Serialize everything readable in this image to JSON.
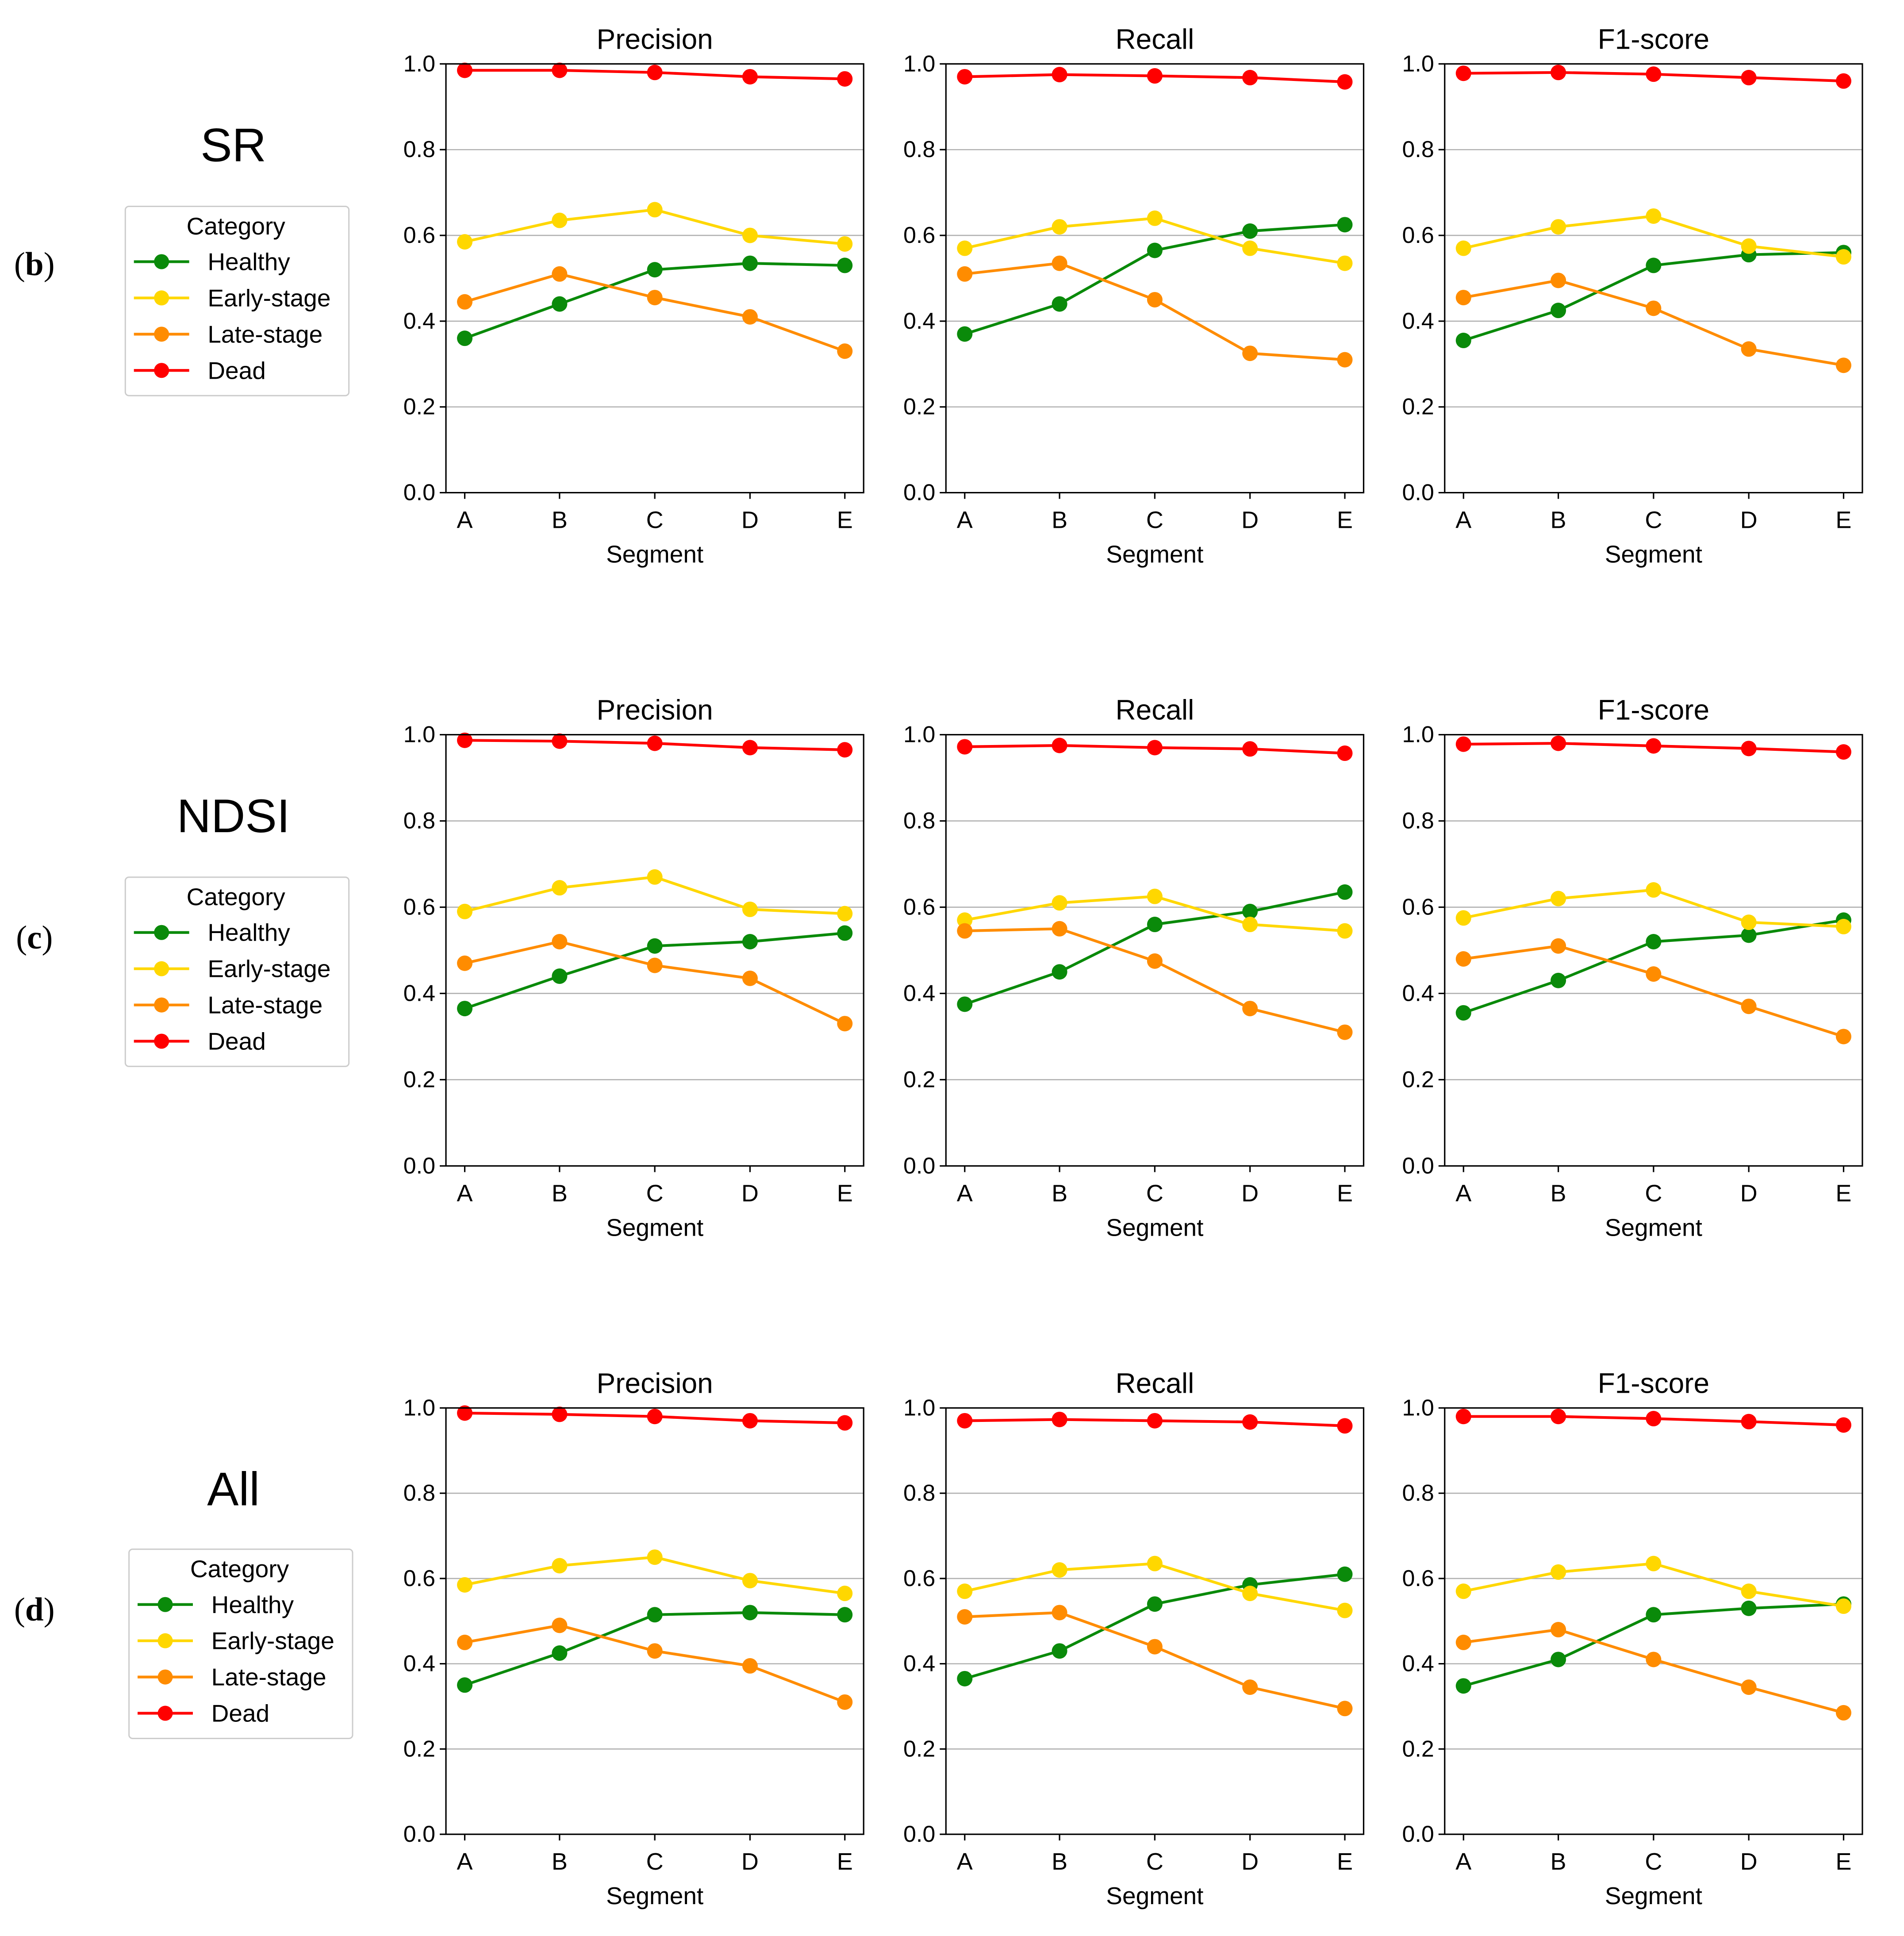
{
  "segment_xlabel": "Segment",
  "legend_title": "Category",
  "categories_legend": [
    "Healthy",
    "Early-stage",
    "Late-stage",
    "Dead"
  ],
  "series_colors": {
    "Healthy": "#0a8a0a",
    "Early-stage": "#ffd700",
    "Late-stage": "#ff8c00",
    "Dead": "#ff0000"
  },
  "rows": [
    {
      "panel_label": "(b)",
      "letter_open": "(",
      "letter": "b",
      "letter_close": ")",
      "method": "SR",
      "legend_title": "Category"
    },
    {
      "panel_label": "(c)",
      "letter_open": "(",
      "letter": "c",
      "letter_close": ")",
      "method": "NDSI",
      "legend_title": "Category"
    },
    {
      "panel_label": "(d)",
      "letter_open": "(",
      "letter": "d",
      "letter_close": ")",
      "method": "All",
      "legend_title": "Category"
    }
  ],
  "chart_data": [
    {
      "type": "line",
      "row": "SR",
      "title": "Precision",
      "xlabel": "Segment",
      "ylabel": "",
      "categories": [
        "A",
        "B",
        "C",
        "D",
        "E"
      ],
      "ylim": [
        0.0,
        1.0
      ],
      "yticks": [
        "0.0",
        "0.2",
        "0.4",
        "0.6",
        "0.8",
        "1.0"
      ],
      "grid": "horizontal",
      "series": [
        {
          "name": "Healthy",
          "values": [
            0.36,
            0.44,
            0.52,
            0.535,
            0.53
          ]
        },
        {
          "name": "Early-stage",
          "values": [
            0.585,
            0.635,
            0.66,
            0.6,
            0.58
          ]
        },
        {
          "name": "Late-stage",
          "values": [
            0.445,
            0.51,
            0.455,
            0.41,
            0.33
          ]
        },
        {
          "name": "Dead",
          "values": [
            0.985,
            0.985,
            0.98,
            0.97,
            0.965
          ]
        }
      ]
    },
    {
      "type": "line",
      "row": "SR",
      "title": "Recall",
      "xlabel": "Segment",
      "ylabel": "",
      "categories": [
        "A",
        "B",
        "C",
        "D",
        "E"
      ],
      "ylim": [
        0.0,
        1.0
      ],
      "yticks": [
        "0.0",
        "0.2",
        "0.4",
        "0.6",
        "0.8",
        "1.0"
      ],
      "grid": "horizontal",
      "series": [
        {
          "name": "Healthy",
          "values": [
            0.37,
            0.44,
            0.565,
            0.61,
            0.625
          ]
        },
        {
          "name": "Early-stage",
          "values": [
            0.57,
            0.62,
            0.64,
            0.57,
            0.535
          ]
        },
        {
          "name": "Late-stage",
          "values": [
            0.51,
            0.535,
            0.45,
            0.325,
            0.31
          ]
        },
        {
          "name": "Dead",
          "values": [
            0.97,
            0.975,
            0.972,
            0.968,
            0.958
          ]
        }
      ]
    },
    {
      "type": "line",
      "row": "SR",
      "title": "F1-score",
      "xlabel": "Segment",
      "ylabel": "",
      "categories": [
        "A",
        "B",
        "C",
        "D",
        "E"
      ],
      "ylim": [
        0.0,
        1.0
      ],
      "yticks": [
        "0.0",
        "0.2",
        "0.4",
        "0.6",
        "0.8",
        "1.0"
      ],
      "grid": "horizontal",
      "series": [
        {
          "name": "Healthy",
          "values": [
            0.355,
            0.425,
            0.53,
            0.555,
            0.56
          ]
        },
        {
          "name": "Early-stage",
          "values": [
            0.57,
            0.62,
            0.645,
            0.575,
            0.55
          ]
        },
        {
          "name": "Late-stage",
          "values": [
            0.455,
            0.495,
            0.43,
            0.335,
            0.297
          ]
        },
        {
          "name": "Dead",
          "values": [
            0.978,
            0.98,
            0.976,
            0.968,
            0.96
          ]
        }
      ]
    },
    {
      "type": "line",
      "row": "NDSI",
      "title": "Precision",
      "xlabel": "Segment",
      "ylabel": "",
      "categories": [
        "A",
        "B",
        "C",
        "D",
        "E"
      ],
      "ylim": [
        0.0,
        1.0
      ],
      "yticks": [
        "0.0",
        "0.2",
        "0.4",
        "0.6",
        "0.8",
        "1.0"
      ],
      "grid": "horizontal",
      "series": [
        {
          "name": "Healthy",
          "values": [
            0.365,
            0.44,
            0.51,
            0.52,
            0.54
          ]
        },
        {
          "name": "Early-stage",
          "values": [
            0.59,
            0.645,
            0.67,
            0.595,
            0.585
          ]
        },
        {
          "name": "Late-stage",
          "values": [
            0.47,
            0.52,
            0.465,
            0.435,
            0.33
          ]
        },
        {
          "name": "Dead",
          "values": [
            0.987,
            0.985,
            0.98,
            0.97,
            0.965
          ]
        }
      ]
    },
    {
      "type": "line",
      "row": "NDSI",
      "title": "Recall",
      "xlabel": "Segment",
      "ylabel": "",
      "categories": [
        "A",
        "B",
        "C",
        "D",
        "E"
      ],
      "ylim": [
        0.0,
        1.0
      ],
      "yticks": [
        "0.0",
        "0.2",
        "0.4",
        "0.6",
        "0.8",
        "1.0"
      ],
      "grid": "horizontal",
      "series": [
        {
          "name": "Healthy",
          "values": [
            0.375,
            0.45,
            0.56,
            0.59,
            0.635
          ]
        },
        {
          "name": "Early-stage",
          "values": [
            0.57,
            0.61,
            0.625,
            0.56,
            0.545
          ]
        },
        {
          "name": "Late-stage",
          "values": [
            0.545,
            0.55,
            0.475,
            0.365,
            0.31
          ]
        },
        {
          "name": "Dead",
          "values": [
            0.972,
            0.975,
            0.97,
            0.967,
            0.957
          ]
        }
      ]
    },
    {
      "type": "line",
      "row": "NDSI",
      "title": "F1-score",
      "xlabel": "Segment",
      "ylabel": "",
      "categories": [
        "A",
        "B",
        "C",
        "D",
        "E"
      ],
      "ylim": [
        0.0,
        1.0
      ],
      "yticks": [
        "0.0",
        "0.2",
        "0.4",
        "0.6",
        "0.8",
        "1.0"
      ],
      "grid": "horizontal",
      "series": [
        {
          "name": "Healthy",
          "values": [
            0.355,
            0.43,
            0.52,
            0.535,
            0.57
          ]
        },
        {
          "name": "Early-stage",
          "values": [
            0.575,
            0.62,
            0.64,
            0.565,
            0.555
          ]
        },
        {
          "name": "Late-stage",
          "values": [
            0.48,
            0.51,
            0.445,
            0.37,
            0.3
          ]
        },
        {
          "name": "Dead",
          "values": [
            0.978,
            0.98,
            0.974,
            0.968,
            0.96
          ]
        }
      ]
    },
    {
      "type": "line",
      "row": "All",
      "title": "Precision",
      "xlabel": "Segment",
      "ylabel": "",
      "categories": [
        "A",
        "B",
        "C",
        "D",
        "E"
      ],
      "ylim": [
        0.0,
        1.0
      ],
      "yticks": [
        "0.0",
        "0.2",
        "0.4",
        "0.6",
        "0.8",
        "1.0"
      ],
      "grid": "horizontal",
      "series": [
        {
          "name": "Healthy",
          "values": [
            0.35,
            0.425,
            0.515,
            0.52,
            0.515
          ]
        },
        {
          "name": "Early-stage",
          "values": [
            0.585,
            0.63,
            0.65,
            0.595,
            0.565
          ]
        },
        {
          "name": "Late-stage",
          "values": [
            0.45,
            0.49,
            0.43,
            0.395,
            0.31
          ]
        },
        {
          "name": "Dead",
          "values": [
            0.988,
            0.985,
            0.98,
            0.97,
            0.965
          ]
        }
      ]
    },
    {
      "type": "line",
      "row": "All",
      "title": "Recall",
      "xlabel": "Segment",
      "ylabel": "",
      "categories": [
        "A",
        "B",
        "C",
        "D",
        "E"
      ],
      "ylim": [
        0.0,
        1.0
      ],
      "yticks": [
        "0.0",
        "0.2",
        "0.4",
        "0.6",
        "0.8",
        "1.0"
      ],
      "grid": "horizontal",
      "series": [
        {
          "name": "Healthy",
          "values": [
            0.365,
            0.43,
            0.54,
            0.585,
            0.61
          ]
        },
        {
          "name": "Early-stage",
          "values": [
            0.57,
            0.62,
            0.635,
            0.565,
            0.525
          ]
        },
        {
          "name": "Late-stage",
          "values": [
            0.51,
            0.52,
            0.44,
            0.345,
            0.295
          ]
        },
        {
          "name": "Dead",
          "values": [
            0.97,
            0.973,
            0.97,
            0.967,
            0.958
          ]
        }
      ]
    },
    {
      "type": "line",
      "row": "All",
      "title": "F1-score",
      "xlabel": "Segment",
      "ylabel": "",
      "categories": [
        "A",
        "B",
        "C",
        "D",
        "E"
      ],
      "ylim": [
        0.0,
        1.0
      ],
      "yticks": [
        "0.0",
        "0.2",
        "0.4",
        "0.6",
        "0.8",
        "1.0"
      ],
      "grid": "horizontal",
      "series": [
        {
          "name": "Healthy",
          "values": [
            0.348,
            0.41,
            0.515,
            0.53,
            0.54
          ]
        },
        {
          "name": "Early-stage",
          "values": [
            0.57,
            0.615,
            0.635,
            0.57,
            0.535
          ]
        },
        {
          "name": "Late-stage",
          "values": [
            0.45,
            0.48,
            0.41,
            0.345,
            0.285
          ]
        },
        {
          "name": "Dead",
          "values": [
            0.98,
            0.98,
            0.975,
            0.968,
            0.96
          ]
        }
      ]
    }
  ]
}
